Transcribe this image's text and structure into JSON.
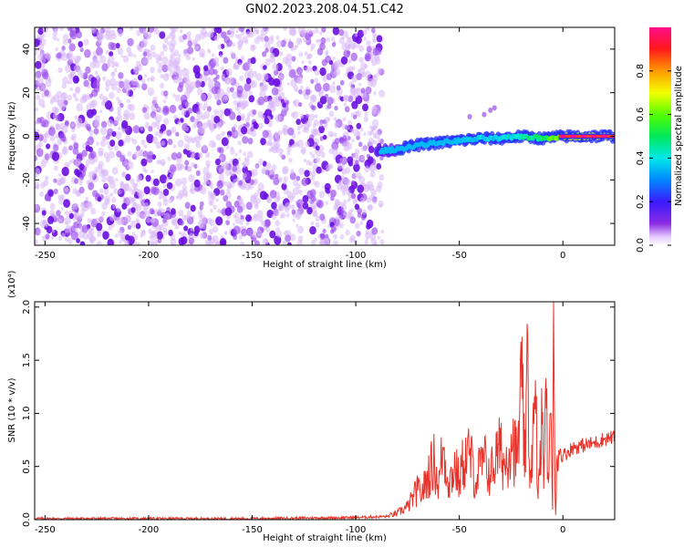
{
  "title": "GN02.2023.208.04.51.C42",
  "colors": {
    "snr_line": "#e8332a",
    "frame": "#000000",
    "spectrogram_palette": "rainbow (white → violet → blue → cyan → green → yellow → orange → red → magenta)"
  },
  "chart_data": [
    {
      "type": "heatmap",
      "title": "GN02.2023.208.04.51.C42",
      "xlabel": "Height of straight line (km)",
      "ylabel": "Frequency (Hz)",
      "xlim": [
        -255,
        25
      ],
      "ylim": [
        -50,
        50
      ],
      "xticks": [
        -250,
        -200,
        -150,
        -100,
        -50,
        0
      ],
      "yticks": [
        -40,
        -20,
        0,
        20,
        40
      ],
      "xtick_labels": [
        "-250",
        "-200",
        "-150",
        "-100",
        "-50",
        "0"
      ],
      "ytick_labels": [
        "-40",
        "-20",
        "0",
        "20",
        "40"
      ],
      "colorbar": {
        "label": "Normalized spectral amplitude",
        "range": [
          0,
          1
        ],
        "ticks": [
          0.0,
          0.2,
          0.4,
          0.6,
          0.8
        ],
        "tick_labels": [
          "0.0",
          "0.2",
          "0.4",
          "0.6",
          "0.8"
        ]
      },
      "noise_region": {
        "x_range": [
          -255,
          -87
        ],
        "freq_range": [
          -50,
          50
        ],
        "level": 0.15
      },
      "signal_trace": {
        "x": [
          -90,
          -80,
          -70,
          -60,
          -50,
          -40,
          -30,
          -20,
          -10,
          0,
          10,
          20,
          25
        ],
        "freq": [
          -7,
          -6,
          -4,
          -3,
          -2,
          -1,
          -1,
          0,
          -1,
          0,
          0,
          0,
          0
        ],
        "amplitude": [
          0.3,
          0.35,
          0.4,
          0.4,
          0.45,
          0.5,
          0.55,
          0.6,
          0.7,
          0.9,
          0.95,
          0.95,
          0.95
        ]
      }
    },
    {
      "type": "line",
      "xlabel": "Height of straight line (km)",
      "ylabel": "SNR (10 * v/v)",
      "y_multiplier": "(x10⁴)",
      "xlim": [
        -255,
        25
      ],
      "ylim": [
        0,
        2.05
      ],
      "xticks": [
        -250,
        -200,
        -150,
        -100,
        -50,
        0
      ],
      "yticks": [
        0.0,
        0.5,
        1.0,
        1.5,
        2.0
      ],
      "xtick_labels": [
        "-250",
        "-200",
        "-150",
        "-100",
        "-50",
        "0"
      ],
      "ytick_labels": [
        "0.0",
        "0.5",
        "1.0",
        "1.5",
        "2.0"
      ],
      "series": [
        {
          "x": [
            -255,
            -200,
            -150,
            -100,
            -85,
            -80,
            -75,
            -72,
            -70,
            -68,
            -65,
            -62,
            -60,
            -58,
            -55,
            -52,
            -50,
            -48,
            -45,
            -42,
            -40,
            -38,
            -35,
            -32,
            -30,
            -28,
            -25,
            -22,
            -20,
            -18,
            -17,
            -16,
            -15,
            -13,
            -12,
            -10,
            -9,
            -8,
            -7,
            -6,
            -5,
            -4.5,
            -4,
            -3.5,
            -3,
            -2,
            0,
            5,
            10,
            15,
            20,
            25
          ],
          "values": [
            0.01,
            0.01,
            0.01,
            0.02,
            0.03,
            0.06,
            0.12,
            0.22,
            0.28,
            0.25,
            0.42,
            0.55,
            0.3,
            0.68,
            0.35,
            0.5,
            0.35,
            0.55,
            0.62,
            0.35,
            0.5,
            0.55,
            0.42,
            0.6,
            0.65,
            0.5,
            0.8,
            0.55,
            1.25,
            0.45,
            1.75,
            0.3,
            0.7,
            1.0,
            0.2,
            0.9,
            0.55,
            1.05,
            0.35,
            1.0,
            0.1,
            2.05,
            0.8,
            0.05,
            0.55,
            0.65,
            0.6,
            0.68,
            0.7,
            0.72,
            0.76,
            0.78
          ]
        }
      ]
    }
  ]
}
